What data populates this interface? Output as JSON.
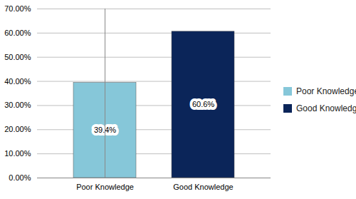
{
  "chart_data": {
    "type": "bar",
    "categories": [
      "Poor Knowledge",
      "Good Knowledge"
    ],
    "values": [
      39.4,
      60.6
    ],
    "value_labels": [
      "39.4%",
      "60.6%"
    ],
    "colors": [
      "#86c7d9",
      "#0b2559"
    ],
    "ylim": [
      0,
      70
    ],
    "yticks": [
      {
        "value": 0,
        "label": "0.00%"
      },
      {
        "value": 10,
        "label": "10.00%"
      },
      {
        "value": 20,
        "label": "20.00%"
      },
      {
        "value": 30,
        "label": "30.00%"
      },
      {
        "value": 40,
        "label": "40.00%"
      },
      {
        "value": 50,
        "label": "50.00%"
      },
      {
        "value": 60,
        "label": "60.00%"
      },
      {
        "value": 70,
        "label": "70.00%"
      }
    ],
    "grid": true,
    "data_labels": true,
    "legend": "right"
  }
}
